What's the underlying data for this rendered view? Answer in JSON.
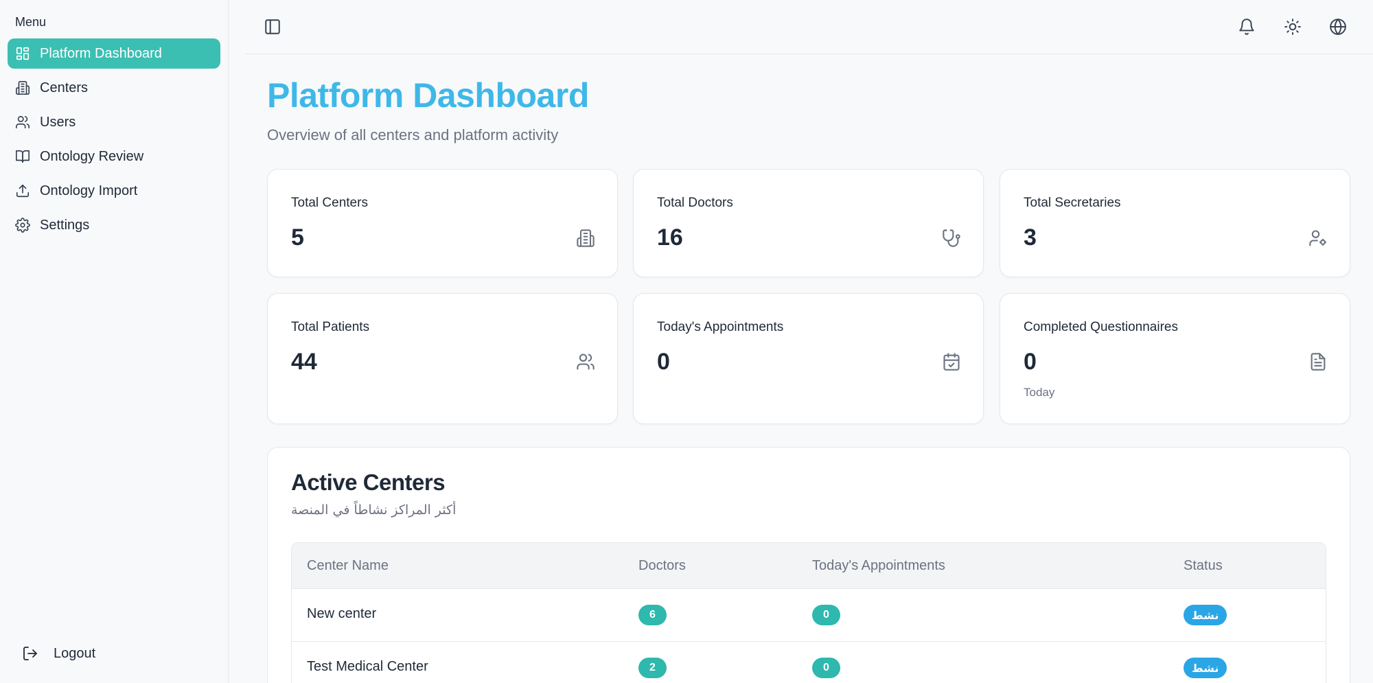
{
  "sidebar": {
    "menu_label": "Menu",
    "items": [
      {
        "label": "Platform Dashboard",
        "icon": "dashboard-icon",
        "active": true
      },
      {
        "label": "Centers",
        "icon": "building-icon"
      },
      {
        "label": "Users",
        "icon": "users-icon"
      },
      {
        "label": "Ontology Review",
        "icon": "book-icon"
      },
      {
        "label": "Ontology Import",
        "icon": "upload-icon"
      },
      {
        "label": "Settings",
        "icon": "gear-icon"
      }
    ],
    "logout_label": "Logout"
  },
  "topbar": {
    "icons": [
      "sidebar-toggle-icon",
      "bell-icon",
      "sun-icon",
      "globe-icon"
    ]
  },
  "header": {
    "title": "Platform Dashboard",
    "subtitle": "Overview of all centers and platform activity"
  },
  "stats": [
    {
      "label": "Total Centers",
      "value": "5",
      "icon": "building-icon"
    },
    {
      "label": "Total Doctors",
      "value": "16",
      "icon": "stethoscope-icon"
    },
    {
      "label": "Total Secretaries",
      "value": "3",
      "icon": "user-cog-icon"
    },
    {
      "label": "Total Patients",
      "value": "44",
      "icon": "users-icon"
    },
    {
      "label": "Today's Appointments",
      "value": "0",
      "icon": "calendar-check-icon"
    },
    {
      "label": "Completed Questionnaires",
      "value": "0",
      "sub": "Today",
      "icon": "document-icon"
    }
  ],
  "active_centers": {
    "title": "Active Centers",
    "subtitle": "أكثر المراكز نشاطاً في المنصة",
    "columns": [
      "Center Name",
      "Doctors",
      "Today's Appointments",
      "Status"
    ],
    "rows": [
      {
        "name": "New center",
        "doctors": "6",
        "appointments": "0",
        "status": "نشط"
      },
      {
        "name": "Test Medical Center",
        "doctors": "2",
        "appointments": "0",
        "status": "نشط"
      }
    ]
  },
  "colors": {
    "accent": "#3bbfb2",
    "title": "#3eb8e8",
    "status": "#2aa6e6"
  }
}
